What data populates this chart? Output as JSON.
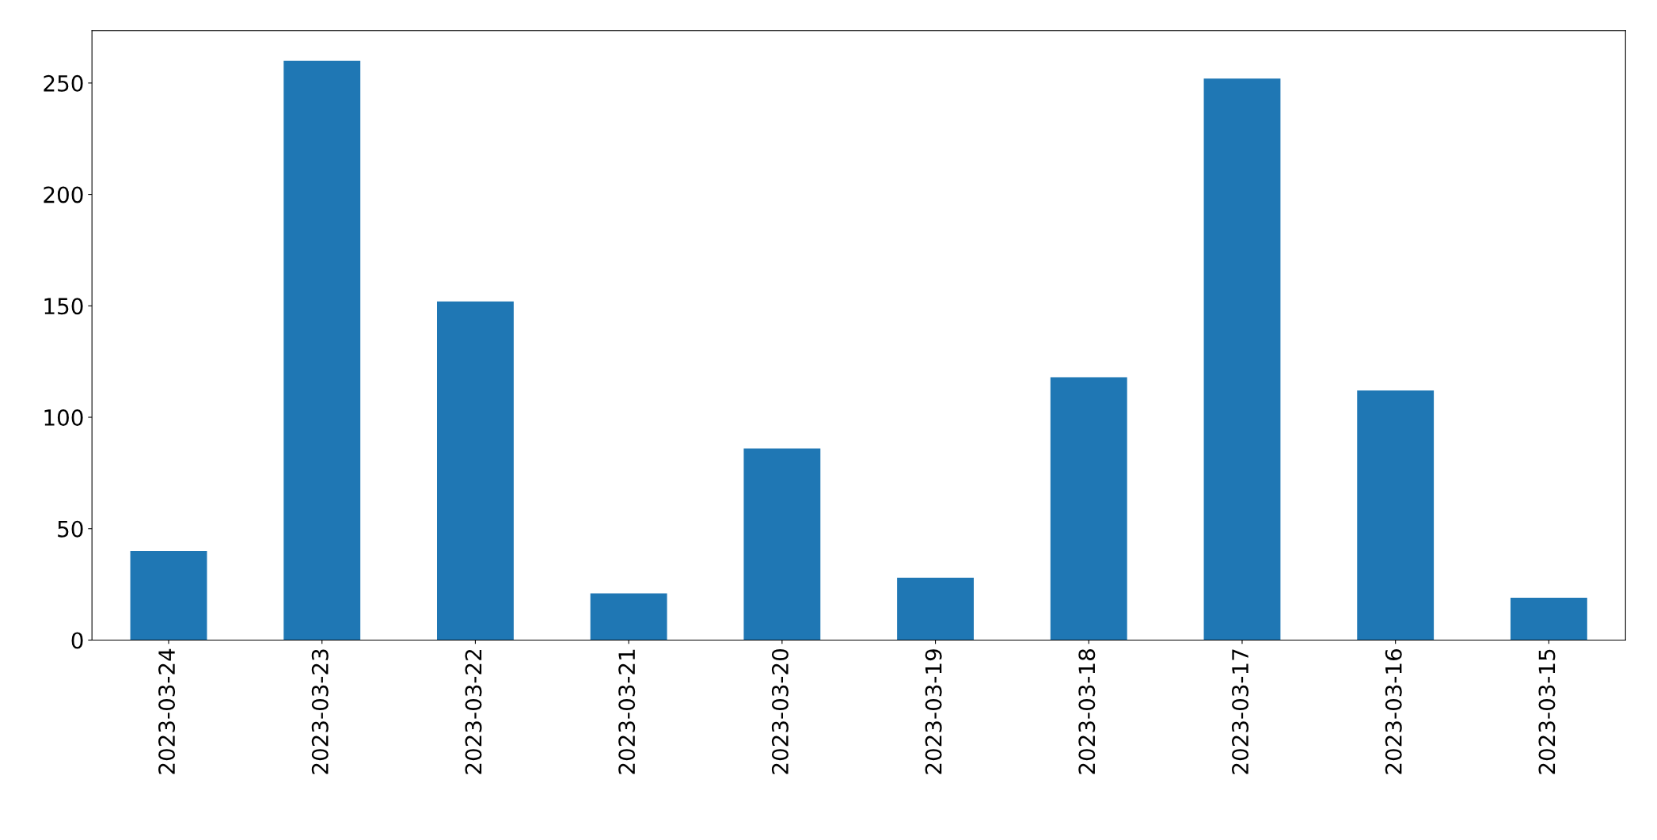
{
  "chart_data": {
    "type": "bar",
    "categories": [
      "2023-03-24",
      "2023-03-23",
      "2023-03-22",
      "2023-03-21",
      "2023-03-20",
      "2023-03-19",
      "2023-03-18",
      "2023-03-17",
      "2023-03-16",
      "2023-03-15"
    ],
    "values": [
      40,
      260,
      152,
      21,
      86,
      28,
      118,
      252,
      112,
      19
    ],
    "color": "#1f77b4",
    "ylim": [
      0,
      273.5
    ],
    "yticks": [
      0,
      50,
      100,
      150,
      200,
      250
    ],
    "grid": false,
    "legend": false
  }
}
